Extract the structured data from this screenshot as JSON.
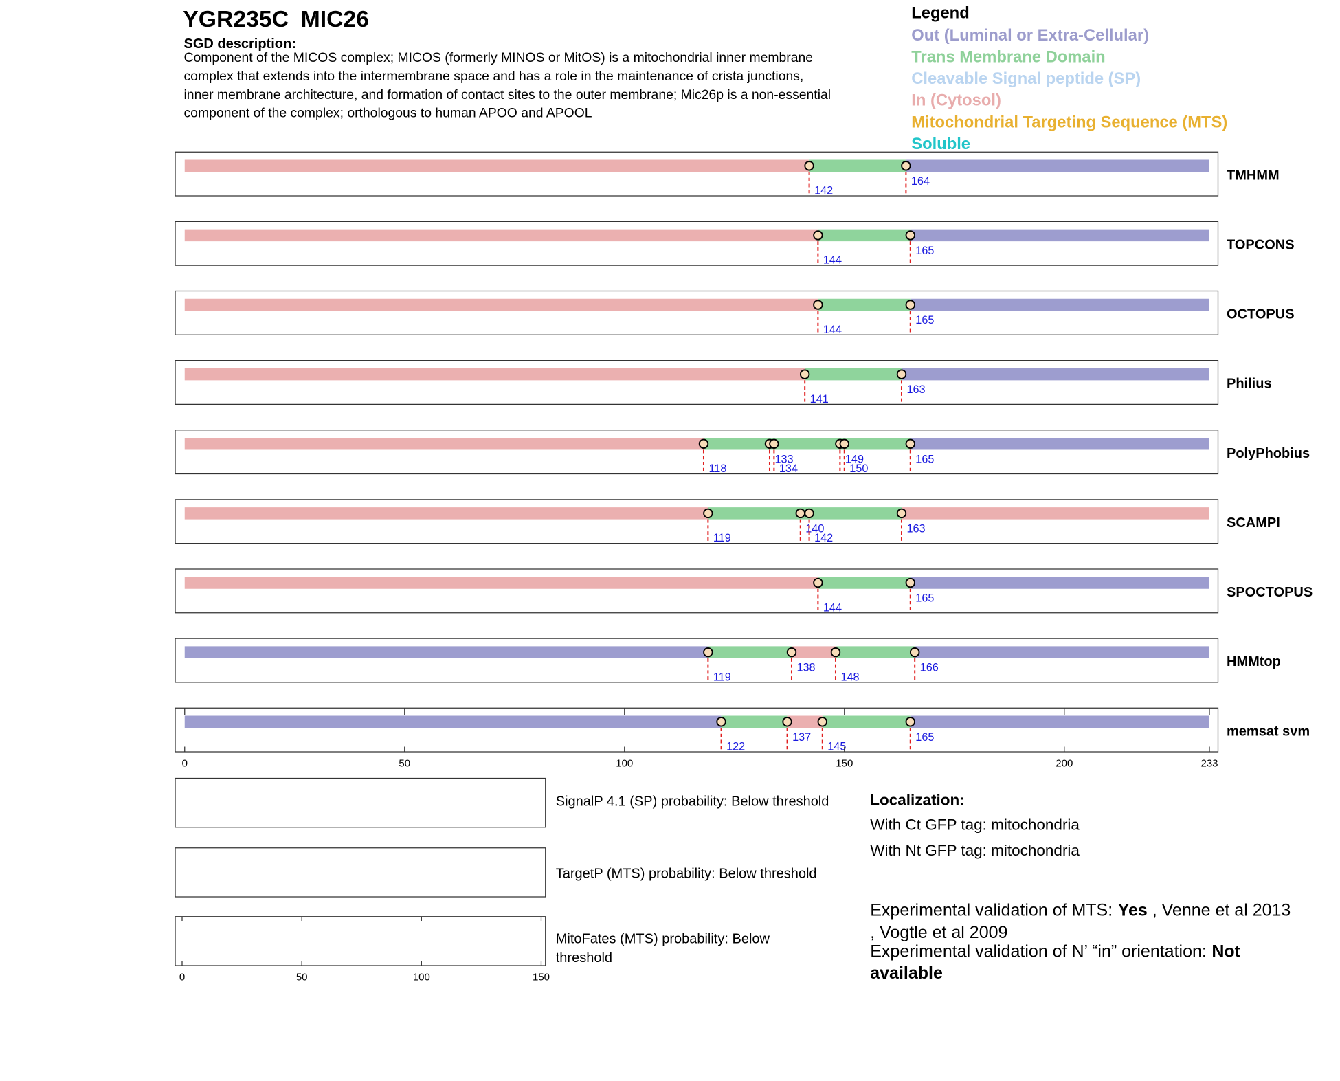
{
  "header": {
    "gene": "YGR235C",
    "name": "MIC26",
    "description_label": "SGD description:",
    "description_lines": [
      "Component of the MICOS complex; MICOS (formerly MINOS or MitOS) is a mitochondrial inner membrane",
      "complex that extends into the intermembrane space and has a role in the maintenance of crista junctions,",
      "inner membrane architecture, and formation of contact sites to the outer membrane; Mic26p is a non-essential",
      "component of the complex; orthologous to human APOO and APOOL"
    ]
  },
  "legend": {
    "title": "Legend",
    "items": [
      {
        "label": "Out (Luminal or Extra-Cellular)",
        "color": "#9c9ccc"
      },
      {
        "label": "Trans Membrane Domain",
        "color": "#8fd19a"
      },
      {
        "label": "Cleavable Signal peptide (SP)",
        "color": "#b9d4f0"
      },
      {
        "label": "In (Cytosol)",
        "color": "#e8acac"
      },
      {
        "label": "Mitochondrial Targeting Sequence (MTS)",
        "color": "#e8b030"
      },
      {
        "label": "Soluble",
        "color": "#22c5c9"
      }
    ]
  },
  "tracks": {
    "xlim": [
      0,
      233
    ],
    "xticks": [
      0,
      50,
      100,
      150,
      200,
      233
    ],
    "predictors": [
      {
        "name": "TMHMM",
        "boundaries": [
          142,
          164
        ],
        "regions": [
          "#ebb0b0",
          "#8fd49c",
          "#9d9dcf"
        ]
      },
      {
        "name": "TOPCONS",
        "boundaries": [
          144,
          165
        ],
        "regions": [
          "#ebb0b0",
          "#8fd49c",
          "#9d9dcf"
        ]
      },
      {
        "name": "OCTOPUS",
        "boundaries": [
          144,
          165
        ],
        "regions": [
          "#ebb0b0",
          "#8fd49c",
          "#9d9dcf"
        ]
      },
      {
        "name": "Philius",
        "boundaries": [
          141,
          163
        ],
        "regions": [
          "#ebb0b0",
          "#8fd49c",
          "#9d9dcf"
        ]
      },
      {
        "name": "PolyPhobius",
        "boundaries": [
          118,
          133,
          134,
          149,
          150,
          165
        ],
        "regions": [
          "#ebb0b0",
          "#8fd49c",
          "#8fd49c",
          "#8fd49c",
          "#8fd49c",
          "#8fd49c",
          "#9d9dcf"
        ]
      },
      {
        "name": "SCAMPI",
        "boundaries": [
          119,
          140,
          142,
          163
        ],
        "regions": [
          "#ebb0b0",
          "#8fd49c",
          "#8fd49c",
          "#8fd49c",
          "#ebb0b0"
        ]
      },
      {
        "name": "SPOCTOPUS",
        "boundaries": [
          144,
          165
        ],
        "regions": [
          "#ebb0b0",
          "#8fd49c",
          "#9d9dcf"
        ]
      },
      {
        "name": "HMMtop",
        "boundaries": [
          119,
          138,
          148,
          166
        ],
        "regions": [
          "#9d9dcf",
          "#8fd49c",
          "#ebb0b0",
          "#8fd49c",
          "#9d9dcf"
        ]
      },
      {
        "name": "memsat svm",
        "boundaries": [
          122,
          137,
          145,
          165
        ],
        "regions": [
          "#9d9dcf",
          "#8fd49c",
          "#ebb0b0",
          "#8fd49c",
          "#9d9dcf"
        ]
      }
    ]
  },
  "probabilities": {
    "signalp": "SignalP 4.1 (SP) probability: Below threshold",
    "targetp": "TargetP (MTS) probability: Below threshold",
    "mitofates_lines": [
      "MitoFates (MTS) probability: Below",
      "threshold"
    ],
    "xlim": [
      0,
      150
    ],
    "xticks": [
      0,
      50,
      100,
      150
    ]
  },
  "localization": {
    "title": "Localization:",
    "ct": "With Ct GFP tag: mitochondria",
    "nt": "With Nt GFP tag: mitochondria"
  },
  "validation": {
    "mts_label": "Experimental validation of MTS:",
    "mts_value": "Yes",
    "mts_ref": " , Venne et al 2013",
    "mts_ref_cont": ", Vogtle et al 2009",
    "orientation_label": "Experimental validation of N’ “in” orientation:",
    "orientation_value_lines": [
      "Not",
      "available"
    ]
  }
}
